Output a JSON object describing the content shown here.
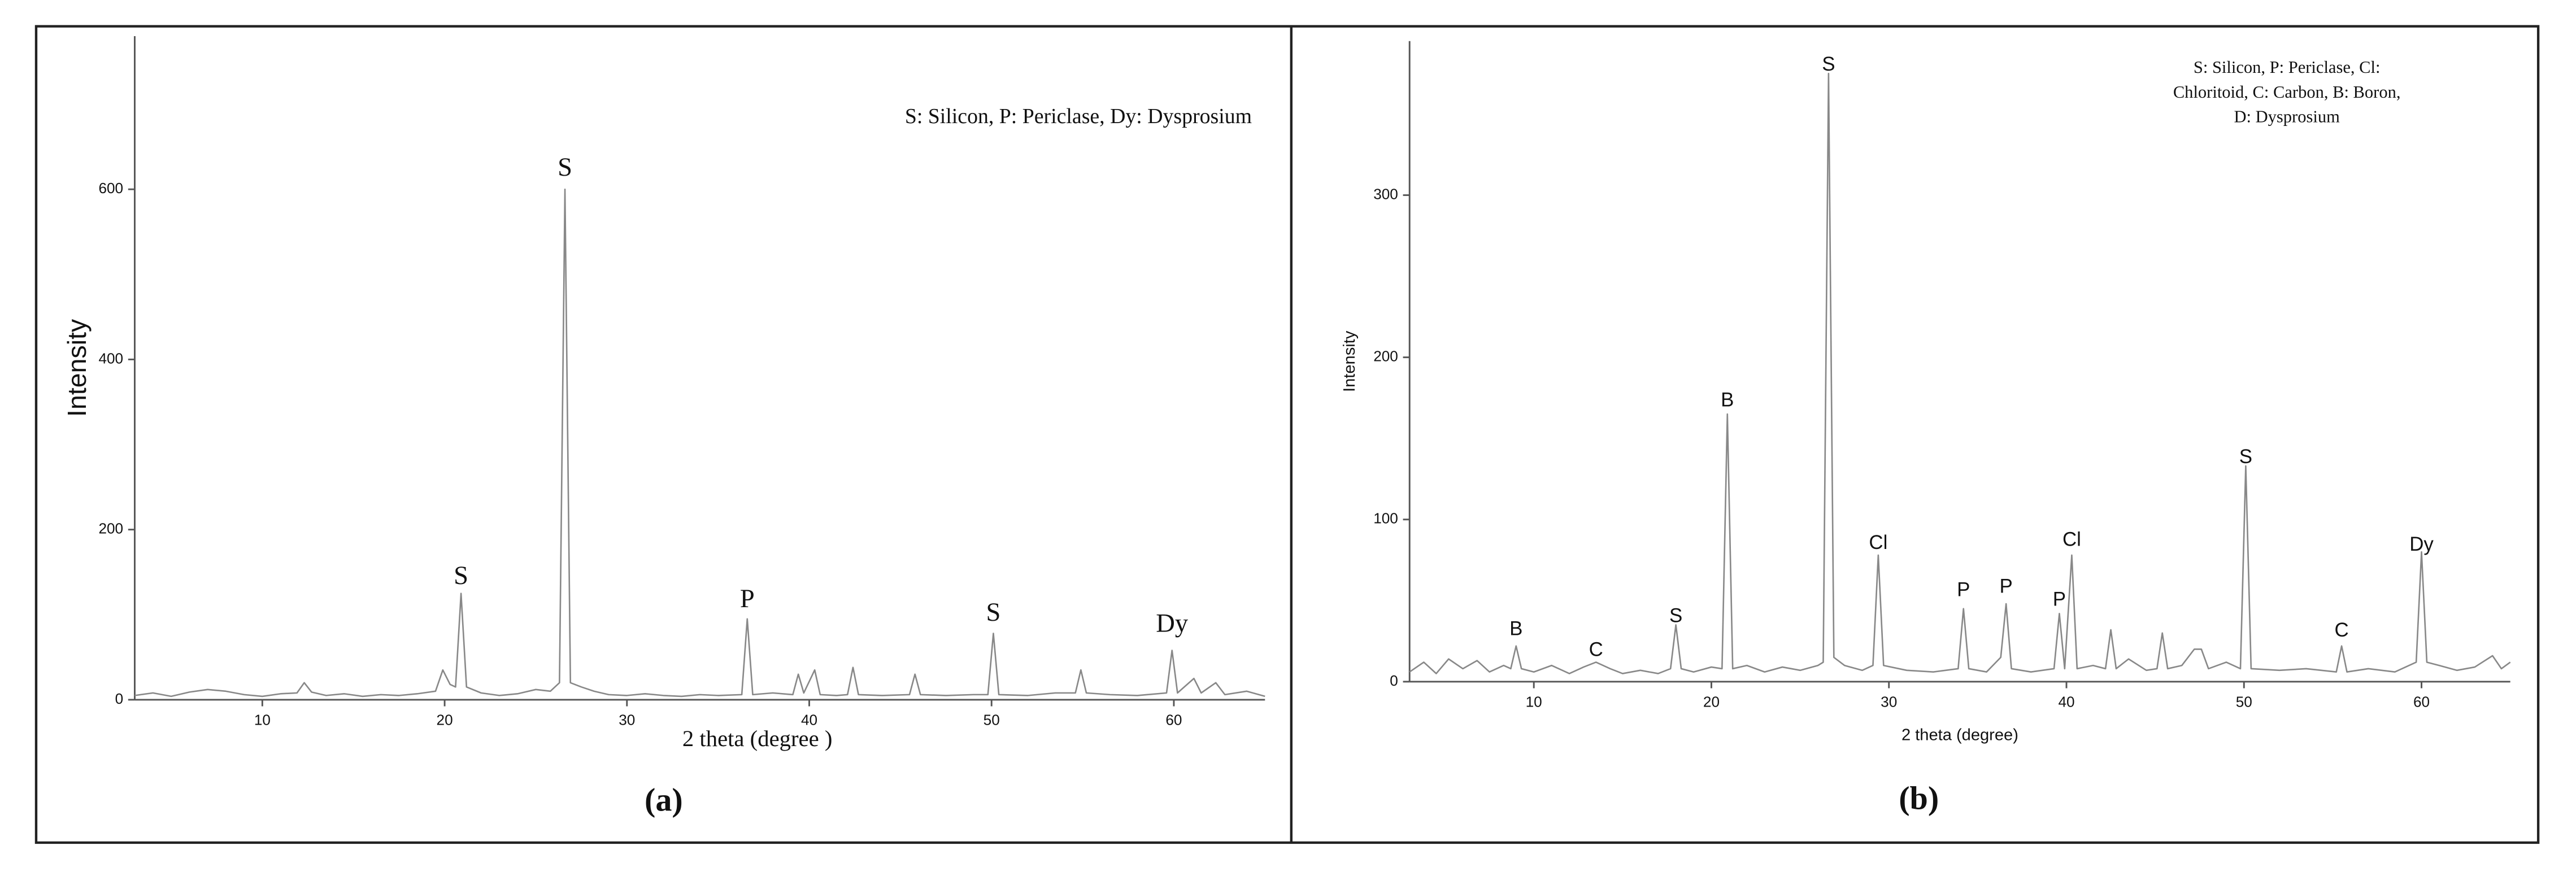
{
  "chart_data": [
    {
      "type": "line",
      "font": "serif",
      "note": [
        "S: Silicon, P: Periclase, Dy: Dysprosium"
      ],
      "x_label": "2 theta (degree )",
      "y_label": "Intensity",
      "caption": "(a)",
      "xlim": [
        3,
        65
      ],
      "ylim": [
        0,
        780
      ],
      "xticks": [
        10,
        20,
        30,
        40,
        50,
        60
      ],
      "yticks": [
        0,
        200,
        400,
        600
      ],
      "grid": false,
      "color": "#888888",
      "x": [
        3,
        4,
        5,
        6,
        7,
        8,
        9,
        10,
        11,
        11.9,
        12.3,
        12.7,
        13.5,
        14.5,
        15.5,
        16.5,
        17.5,
        18.5,
        19.5,
        19.9,
        20.3,
        20.6,
        20.9,
        21.2,
        22,
        23,
        24,
        25,
        25.8,
        26.3,
        26.6,
        26.9,
        27.5,
        28.2,
        29,
        30,
        31,
        32,
        33,
        34,
        35,
        36.3,
        36.6,
        36.9,
        38,
        39.1,
        39.4,
        39.7,
        40.3,
        40.6,
        41.5,
        42.1,
        42.4,
        42.7,
        44,
        45.5,
        45.8,
        46.1,
        47.5,
        49,
        49.8,
        50.1,
        50.4,
        52,
        53.5,
        54.6,
        54.9,
        55.2,
        56.5,
        58,
        59.6,
        59.9,
        60.2,
        61.1,
        61.5,
        62.3,
        62.8,
        64,
        65
      ],
      "values": [
        5,
        8,
        4,
        9,
        12,
        10,
        6,
        4,
        7,
        8,
        20,
        9,
        5,
        7,
        4,
        6,
        5,
        7,
        10,
        35,
        18,
        15,
        125,
        15,
        8,
        5,
        7,
        12,
        10,
        20,
        600,
        20,
        15,
        10,
        6,
        5,
        7,
        5,
        4,
        6,
        5,
        6,
        95,
        6,
        8,
        6,
        30,
        8,
        35,
        6,
        5,
        6,
        38,
        6,
        5,
        6,
        30,
        6,
        5,
        6,
        6,
        78,
        6,
        5,
        8,
        8,
        35,
        8,
        6,
        5,
        8,
        58,
        8,
        25,
        8,
        20,
        6,
        10,
        4
      ],
      "annotations": [
        {
          "text": "S",
          "x": 20.9,
          "y": 143
        },
        {
          "text": "S",
          "x": 26.6,
          "y": 623
        },
        {
          "text": "P",
          "x": 36.6,
          "y": 116
        },
        {
          "text": "S",
          "x": 50.1,
          "y": 100
        },
        {
          "text": "Dy",
          "x": 59.9,
          "y": 87
        }
      ]
    },
    {
      "type": "line",
      "font": "sans",
      "note": [
        "S: Silicon, P: Periclase, Cl:",
        "Chloritoid, C: Carbon, B: Boron,",
        "D: Dysprosium"
      ],
      "x_label": "2 theta (degree)",
      "y_label": "Intensity",
      "caption": "(b)",
      "xlim": [
        3,
        65
      ],
      "ylim": [
        0,
        395
      ],
      "xticks": [
        10,
        20,
        30,
        40,
        50,
        60
      ],
      "yticks": [
        0,
        100,
        200,
        300
      ],
      "grid": false,
      "color": "#888888",
      "x": [
        3,
        3.8,
        4.5,
        5.2,
        6,
        6.8,
        7.5,
        8.3,
        8.7,
        9,
        9.3,
        10,
        11,
        12,
        12.8,
        13.5,
        14.3,
        15,
        16,
        17,
        17.7,
        18,
        18.3,
        19,
        20,
        20.6,
        20.9,
        21.2,
        22,
        23,
        24,
        25,
        26,
        26.3,
        26.6,
        26.9,
        27.5,
        28.5,
        29.1,
        29.4,
        29.7,
        31,
        32.5,
        33.9,
        34.2,
        34.5,
        35.5,
        36.3,
        36.6,
        36.9,
        38,
        39.3,
        39.6,
        39.9,
        40.3,
        40.6,
        41.5,
        42.2,
        42.5,
        42.8,
        43.5,
        44.5,
        45.1,
        45.4,
        45.7,
        46.5,
        47.2,
        47.6,
        48,
        49,
        49.8,
        50.1,
        50.4,
        52,
        53.5,
        55.2,
        55.5,
        55.8,
        57,
        58.5,
        59.7,
        60,
        60.3,
        61,
        62,
        63,
        64,
        64.5,
        65
      ],
      "values": [
        6,
        12,
        5,
        14,
        8,
        13,
        6,
        10,
        8,
        22,
        8,
        6,
        10,
        5,
        9,
        12,
        8,
        5,
        7,
        5,
        8,
        35,
        8,
        6,
        9,
        8,
        165,
        8,
        10,
        6,
        9,
        7,
        10,
        12,
        375,
        15,
        10,
        7,
        10,
        78,
        10,
        7,
        6,
        8,
        45,
        8,
        6,
        15,
        48,
        8,
        6,
        8,
        42,
        8,
        78,
        8,
        10,
        8,
        32,
        8,
        14,
        7,
        8,
        30,
        8,
        10,
        20,
        20,
        8,
        12,
        8,
        133,
        8,
        7,
        8,
        6,
        22,
        6,
        8,
        6,
        12,
        80,
        12,
        10,
        7,
        9,
        16,
        8,
        12
      ],
      "annotations": [
        {
          "text": "B",
          "x": 9,
          "y": 32
        },
        {
          "text": "C",
          "x": 13.5,
          "y": 19
        },
        {
          "text": "S",
          "x": 18,
          "y": 40
        },
        {
          "text": "B",
          "x": 20.9,
          "y": 173
        },
        {
          "text": "S",
          "x": 26.6,
          "y": 380
        },
        {
          "text": "Cl",
          "x": 29.4,
          "y": 85
        },
        {
          "text": "P",
          "x": 34.2,
          "y": 56
        },
        {
          "text": "P",
          "x": 36.6,
          "y": 58
        },
        {
          "text": "P",
          "x": 39.6,
          "y": 50
        },
        {
          "text": "Cl",
          "x": 40.3,
          "y": 87
        },
        {
          "text": "S",
          "x": 50.1,
          "y": 138
        },
        {
          "text": "C",
          "x": 55.5,
          "y": 31
        },
        {
          "text": "Dy",
          "x": 60,
          "y": 84
        }
      ]
    }
  ]
}
